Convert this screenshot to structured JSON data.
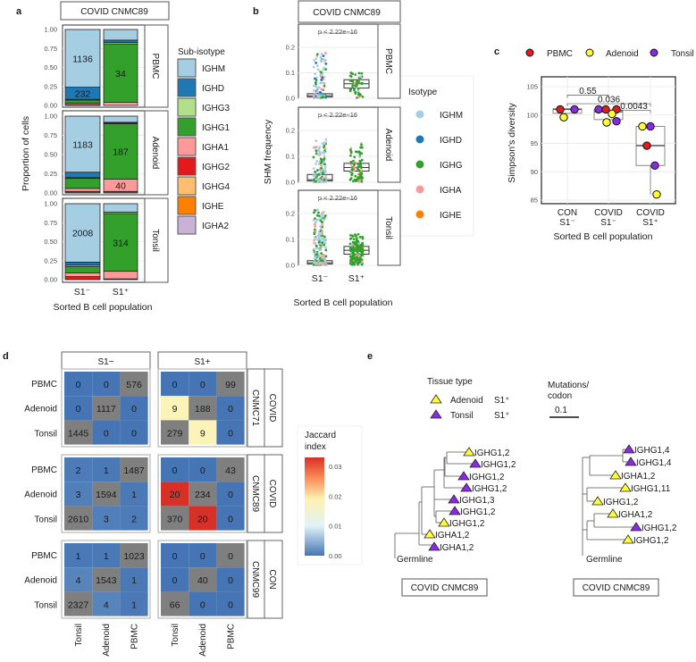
{
  "panel_labels": {
    "a": "a",
    "b": "b",
    "c": "c",
    "d": "d",
    "e": "e"
  },
  "colors": {
    "IGHM": "#a6cee3",
    "IGHD": "#1f78b4",
    "IGHG3": "#b2df8a",
    "IGHG1": "#33a02c",
    "IGHA1": "#fb9a99",
    "IGHG2": "#e31a1c",
    "IGHG4": "#fdbf6f",
    "IGHE": "#ff7f00",
    "IGHA2": "#cab2d6",
    "IGHG": "#33a02c",
    "IGHA": "#fb9a99",
    "PBMC": "#e41a1c",
    "Adenoid": "#ffff33",
    "Tonsil": "#8a2be2"
  },
  "chart_data": [
    {
      "id": "a",
      "type": "bar",
      "stacked": true,
      "title": "COVID  CNMC89",
      "xlabel": "Sorted B cell population",
      "ylabel": "Proportion of cells",
      "ylim": [
        0,
        1
      ],
      "yticks": [
        "0.00",
        "0.25",
        "0.50",
        "0.75",
        "1.00"
      ],
      "categories": [
        "S1⁻",
        "S1⁺"
      ],
      "legend_title": "Sub-isotype",
      "legend": [
        "IGHM",
        "IGHD",
        "IGHG3",
        "IGHG1",
        "IGHA1",
        "IGHG2",
        "IGHG4",
        "IGHE",
        "IGHA2"
      ],
      "facets": [
        {
          "name": "PBMC",
          "bars": [
            {
              "IGHG2": 0.01,
              "IGHA1": 0.02,
              "IGHG1": 0.04,
              "IGHG3": 0.01,
              "IGHD": 0.16,
              "IGHM": 0.76
            },
            {
              "IGHA1": 0.04,
              "IGHG1": 0.77,
              "IGHG3": 0.02,
              "IGHD": 0.03,
              "IGHM": 0.14
            }
          ],
          "labels": [
            {
              "bar": 0,
              "segment": "IGHM",
              "text": "1136"
            },
            {
              "bar": 0,
              "segment": "IGHD",
              "text": "232"
            },
            {
              "bar": 1,
              "segment": "IGHG1",
              "text": "34"
            }
          ]
        },
        {
          "name": "Adenoid",
          "bars": [
            {
              "IGHG2": 0.02,
              "IGHA1": 0.04,
              "IGHG1": 0.13,
              "IGHG3": 0.01,
              "IGHD": 0.07,
              "IGHM": 0.73
            },
            {
              "IGHG2": 0.02,
              "IGHA1": 0.16,
              "IGHG1": 0.72,
              "IGHG3": 0.01,
              "IGHD": 0.01,
              "IGHM": 0.08
            }
          ],
          "labels": [
            {
              "bar": 0,
              "segment": "IGHM",
              "text": "1183"
            },
            {
              "bar": 1,
              "segment": "IGHG1",
              "text": "187"
            },
            {
              "bar": 1,
              "segment": "IGHA1",
              "text": "40"
            }
          ]
        },
        {
          "name": "Tonsil",
          "bars": [
            {
              "IGHG2": 0.04,
              "IGHA1": 0.05,
              "IGHG1": 0.08,
              "IGHG3": 0.02,
              "IGHD": 0.04,
              "IGHM": 0.77
            },
            {
              "IGHG2": 0.01,
              "IGHA1": 0.1,
              "IGHG1": 0.76,
              "IGHG3": 0.02,
              "IGHM": 0.11
            }
          ],
          "labels": [
            {
              "bar": 0,
              "segment": "IGHM",
              "text": "2008"
            },
            {
              "bar": 1,
              "segment": "IGHG1",
              "text": "314"
            }
          ]
        }
      ]
    },
    {
      "id": "b",
      "type": "scatter",
      "title": "COVID  CNMC89",
      "xlabel": "Sorted B cell population",
      "ylabel": "SHM frequency",
      "ylim": [
        0,
        0.25
      ],
      "yticks": [
        "0.0",
        "0.1",
        "0.2"
      ],
      "categories": [
        "S1⁻",
        "S1⁺"
      ],
      "legend_title": "Isotype",
      "legend": [
        "IGHM",
        "IGHD",
        "IGHG",
        "IGHA",
        "IGHE"
      ],
      "facets": [
        {
          "name": "PBMC",
          "p_value": "p < 2.22e−16",
          "groups": [
            {
              "q1": 0.005,
              "median": 0.01,
              "q3": 0.018,
              "max": 0.18,
              "n": 160,
              "mix": {
                "IGHM": 0.65,
                "IGHD": 0.1,
                "IGHG": 0.12,
                "IGHA": 0.13
              }
            },
            {
              "q1": 0.04,
              "median": 0.057,
              "q3": 0.073,
              "max": 0.105,
              "n": 55,
              "mix": {
                "IGHG": 0.85,
                "IGHA": 0.1,
                "IGHM": 0.05
              }
            }
          ]
        },
        {
          "name": "Adenoid",
          "p_value": "p < 2.22e−16",
          "groups": [
            {
              "q1": 0.005,
              "median": 0.01,
              "q3": 0.03,
              "max": 0.165,
              "n": 200,
              "mix": {
                "IGHM": 0.55,
                "IGHG": 0.35,
                "IGHA": 0.1
              }
            },
            {
              "q1": 0.043,
              "median": 0.057,
              "q3": 0.073,
              "max": 0.155,
              "n": 90,
              "mix": {
                "IGHG": 0.7,
                "IGHA": 0.2,
                "IGHM": 0.1
              }
            }
          ]
        },
        {
          "name": "Tonsil",
          "p_value": "p < 2.22e−16",
          "groups": [
            {
              "q1": 0.005,
              "median": 0.01,
              "q3": 0.018,
              "max": 0.215,
              "n": 320,
              "mix": {
                "IGHM": 0.5,
                "IGHG": 0.35,
                "IGHA": 0.15
              }
            },
            {
              "q1": 0.043,
              "median": 0.058,
              "q3": 0.073,
              "max": 0.12,
              "n": 200,
              "mix": {
                "IGHG": 0.8,
                "IGHA": 0.12,
                "IGHM": 0.08
              }
            }
          ]
        }
      ]
    },
    {
      "id": "c",
      "type": "scatter",
      "xlabel": "Sorted B cell population",
      "ylabel": "Simpson's diversity",
      "ylim": [
        84,
        107
      ],
      "yticks": [
        85,
        90,
        95,
        100,
        105
      ],
      "categories": [
        [
          "CON",
          "S1⁻"
        ],
        [
          "COVID",
          "S1⁻"
        ],
        [
          "COVID",
          "S1⁺"
        ]
      ],
      "legend": [
        "PBMC",
        "Adenoid",
        "Tonsil"
      ],
      "legend_placement": "top",
      "boxes": [
        {
          "min": 100.3,
          "q1": 100.3,
          "median": 101.0,
          "q3": 101.1,
          "max": 101.1
        },
        {
          "min": 98.7,
          "q1": 99.2,
          "median": 100.6,
          "q3": 100.9,
          "max": 101.0
        },
        {
          "min": 86.0,
          "q1": 91.1,
          "median": 94.6,
          "q3": 98.0,
          "max": 98.0
        }
      ],
      "points": [
        {
          "group": 0,
          "tissue": "PBMC",
          "y": 101.0
        },
        {
          "group": 0,
          "tissue": "Adenoid",
          "y": 99.6
        },
        {
          "group": 0,
          "tissue": "Tonsil",
          "y": 101.0
        },
        {
          "group": 1,
          "tissue": "Tonsil",
          "y": 101.0
        },
        {
          "group": 1,
          "tissue": "PBMC",
          "y": 101.0
        },
        {
          "group": 1,
          "tissue": "PBMC",
          "y": 101.0
        },
        {
          "group": 1,
          "tissue": "Adenoid",
          "y": 100.2
        },
        {
          "group": 1,
          "tissue": "Adenoid",
          "y": 98.7
        },
        {
          "group": 1,
          "tissue": "Tonsil",
          "y": 98.9
        },
        {
          "group": 2,
          "tissue": "Adenoid",
          "y": 98.0
        },
        {
          "group": 2,
          "tissue": "Tonsil",
          "y": 98.0
        },
        {
          "group": 2,
          "tissue": "PBMC",
          "y": 94.6
        },
        {
          "group": 2,
          "tissue": "Tonsil",
          "y": 91.1
        },
        {
          "group": 2,
          "tissue": "Adenoid",
          "y": 86.0
        }
      ],
      "comparisons": [
        {
          "from": 0,
          "to": 1,
          "label": "0.55",
          "y": 103.5
        },
        {
          "from": 0,
          "to": 2,
          "label": "0.036",
          "y": 102.0
        },
        {
          "from": 1,
          "to": 2,
          "label": "0.0043",
          "y": 100.8
        }
      ]
    },
    {
      "id": "d",
      "type": "heatmap",
      "legend_title": [
        "Jaccard",
        "index"
      ],
      "legend_ticks": [
        "0.00",
        "0.01",
        "0.02",
        "0.03"
      ],
      "legend_range": [
        0,
        0.033
      ],
      "columns": [
        "S1−",
        "S1+"
      ],
      "rows_groups": [
        {
          "donor": "CNMC71",
          "status": "COVID"
        },
        {
          "donor": "CNMC89",
          "status": "COVID"
        },
        {
          "donor": "CNMC99",
          "status": "CON"
        }
      ],
      "row_labels": [
        "PBMC",
        "Adenoid",
        "Tonsil"
      ],
      "col_labels": [
        "Tonsil",
        "Adenoid",
        "PBMC"
      ],
      "cells": [
        [
          {
            "counts": [
              [
                0,
                0,
                576
              ],
              [
                0,
                1117,
                0
              ],
              [
                1445,
                0,
                0
              ]
            ],
            "jaccard": [
              [
                0,
                0,
                null
              ],
              [
                0,
                null,
                0
              ],
              [
                null,
                0,
                0
              ]
            ]
          },
          {
            "counts": [
              [
                0,
                0,
                99
              ],
              [
                9,
                188,
                0
              ],
              [
                279,
                9,
                0
              ]
            ],
            "jaccard": [
              [
                0,
                0,
                null
              ],
              [
                0.018,
                null,
                0
              ],
              [
                null,
                0.018,
                0
              ]
            ]
          }
        ],
        [
          {
            "counts": [
              [
                2,
                1,
                1487
              ],
              [
                3,
                1594,
                1
              ],
              [
                2610,
                3,
                2
              ]
            ],
            "jaccard": [
              [
                0.0005,
                0.0003,
                null
              ],
              [
                0.0008,
                null,
                0.0003
              ],
              [
                null,
                0.0008,
                0.0005
              ]
            ]
          },
          {
            "counts": [
              [
                0,
                0,
                43
              ],
              [
                20,
                234,
                0
              ],
              [
                370,
                20,
                0
              ]
            ],
            "jaccard": [
              [
                0,
                0,
                null
              ],
              [
                0.033,
                null,
                0
              ],
              [
                null,
                0.033,
                0
              ]
            ]
          }
        ],
        [
          {
            "counts": [
              [
                1,
                1,
                1023
              ],
              [
                4,
                1543,
                1
              ],
              [
                2327,
                4,
                1
              ]
            ],
            "jaccard": [
              [
                0.0003,
                0.0003,
                null
              ],
              [
                0.0012,
                null,
                0.0003
              ],
              [
                null,
                0.0012,
                0.0003
              ]
            ]
          },
          {
            "counts": [
              [
                0,
                0,
                0
              ],
              [
                0,
                40,
                0
              ],
              [
                66,
                0,
                0
              ]
            ],
            "jaccard": [
              [
                0,
                0,
                null
              ],
              [
                0,
                null,
                0
              ],
              [
                null,
                0,
                0
              ]
            ]
          }
        ]
      ]
    }
  ],
  "trees": {
    "legend_title": "Tissue type",
    "legend": [
      {
        "tissue": "Adenoid",
        "population": "S1⁺"
      },
      {
        "tissue": "Tonsil",
        "population": "S1⁺"
      }
    ],
    "scale_title": [
      "Mutations/",
      "codon"
    ],
    "scale_value": "0.1",
    "root_label": "Germline",
    "items": [
      {
        "caption": "COVID CNMC89",
        "leaves": [
          {
            "label": "IGHG1,2",
            "tissue": "Adenoid"
          },
          {
            "label": "IGHG1,2",
            "tissue": "Tonsil"
          },
          {
            "label": "IGHG1,2",
            "tissue": "Tonsil"
          },
          {
            "label": "IGHG1,2",
            "tissue": "Tonsil"
          },
          {
            "label": "IGHG1,3",
            "tissue": "Tonsil"
          },
          {
            "label": "IGHG1,2",
            "tissue": "Tonsil"
          },
          {
            "label": "IGHG1,2",
            "tissue": "Adenoid"
          },
          {
            "label": "IGHA1,2",
            "tissue": "Adenoid"
          },
          {
            "label": "IGHA1,2",
            "tissue": "Tonsil"
          }
        ]
      },
      {
        "caption": "COVID CNMC89",
        "leaves": [
          {
            "label": "IGHG1,4",
            "tissue": "Tonsil"
          },
          {
            "label": "IGHG1,4",
            "tissue": "Tonsil"
          },
          {
            "label": "IGHA1,2",
            "tissue": "Adenoid"
          },
          {
            "label": "IGHG1,11",
            "tissue": "Adenoid"
          },
          {
            "label": "IGHG1,2",
            "tissue": "Adenoid"
          },
          {
            "label": "IGHA1,2",
            "tissue": "Adenoid"
          },
          {
            "label": "IGHG1,2",
            "tissue": "Tonsil"
          },
          {
            "label": "IGHG1,2",
            "tissue": "Adenoid"
          }
        ]
      }
    ]
  }
}
